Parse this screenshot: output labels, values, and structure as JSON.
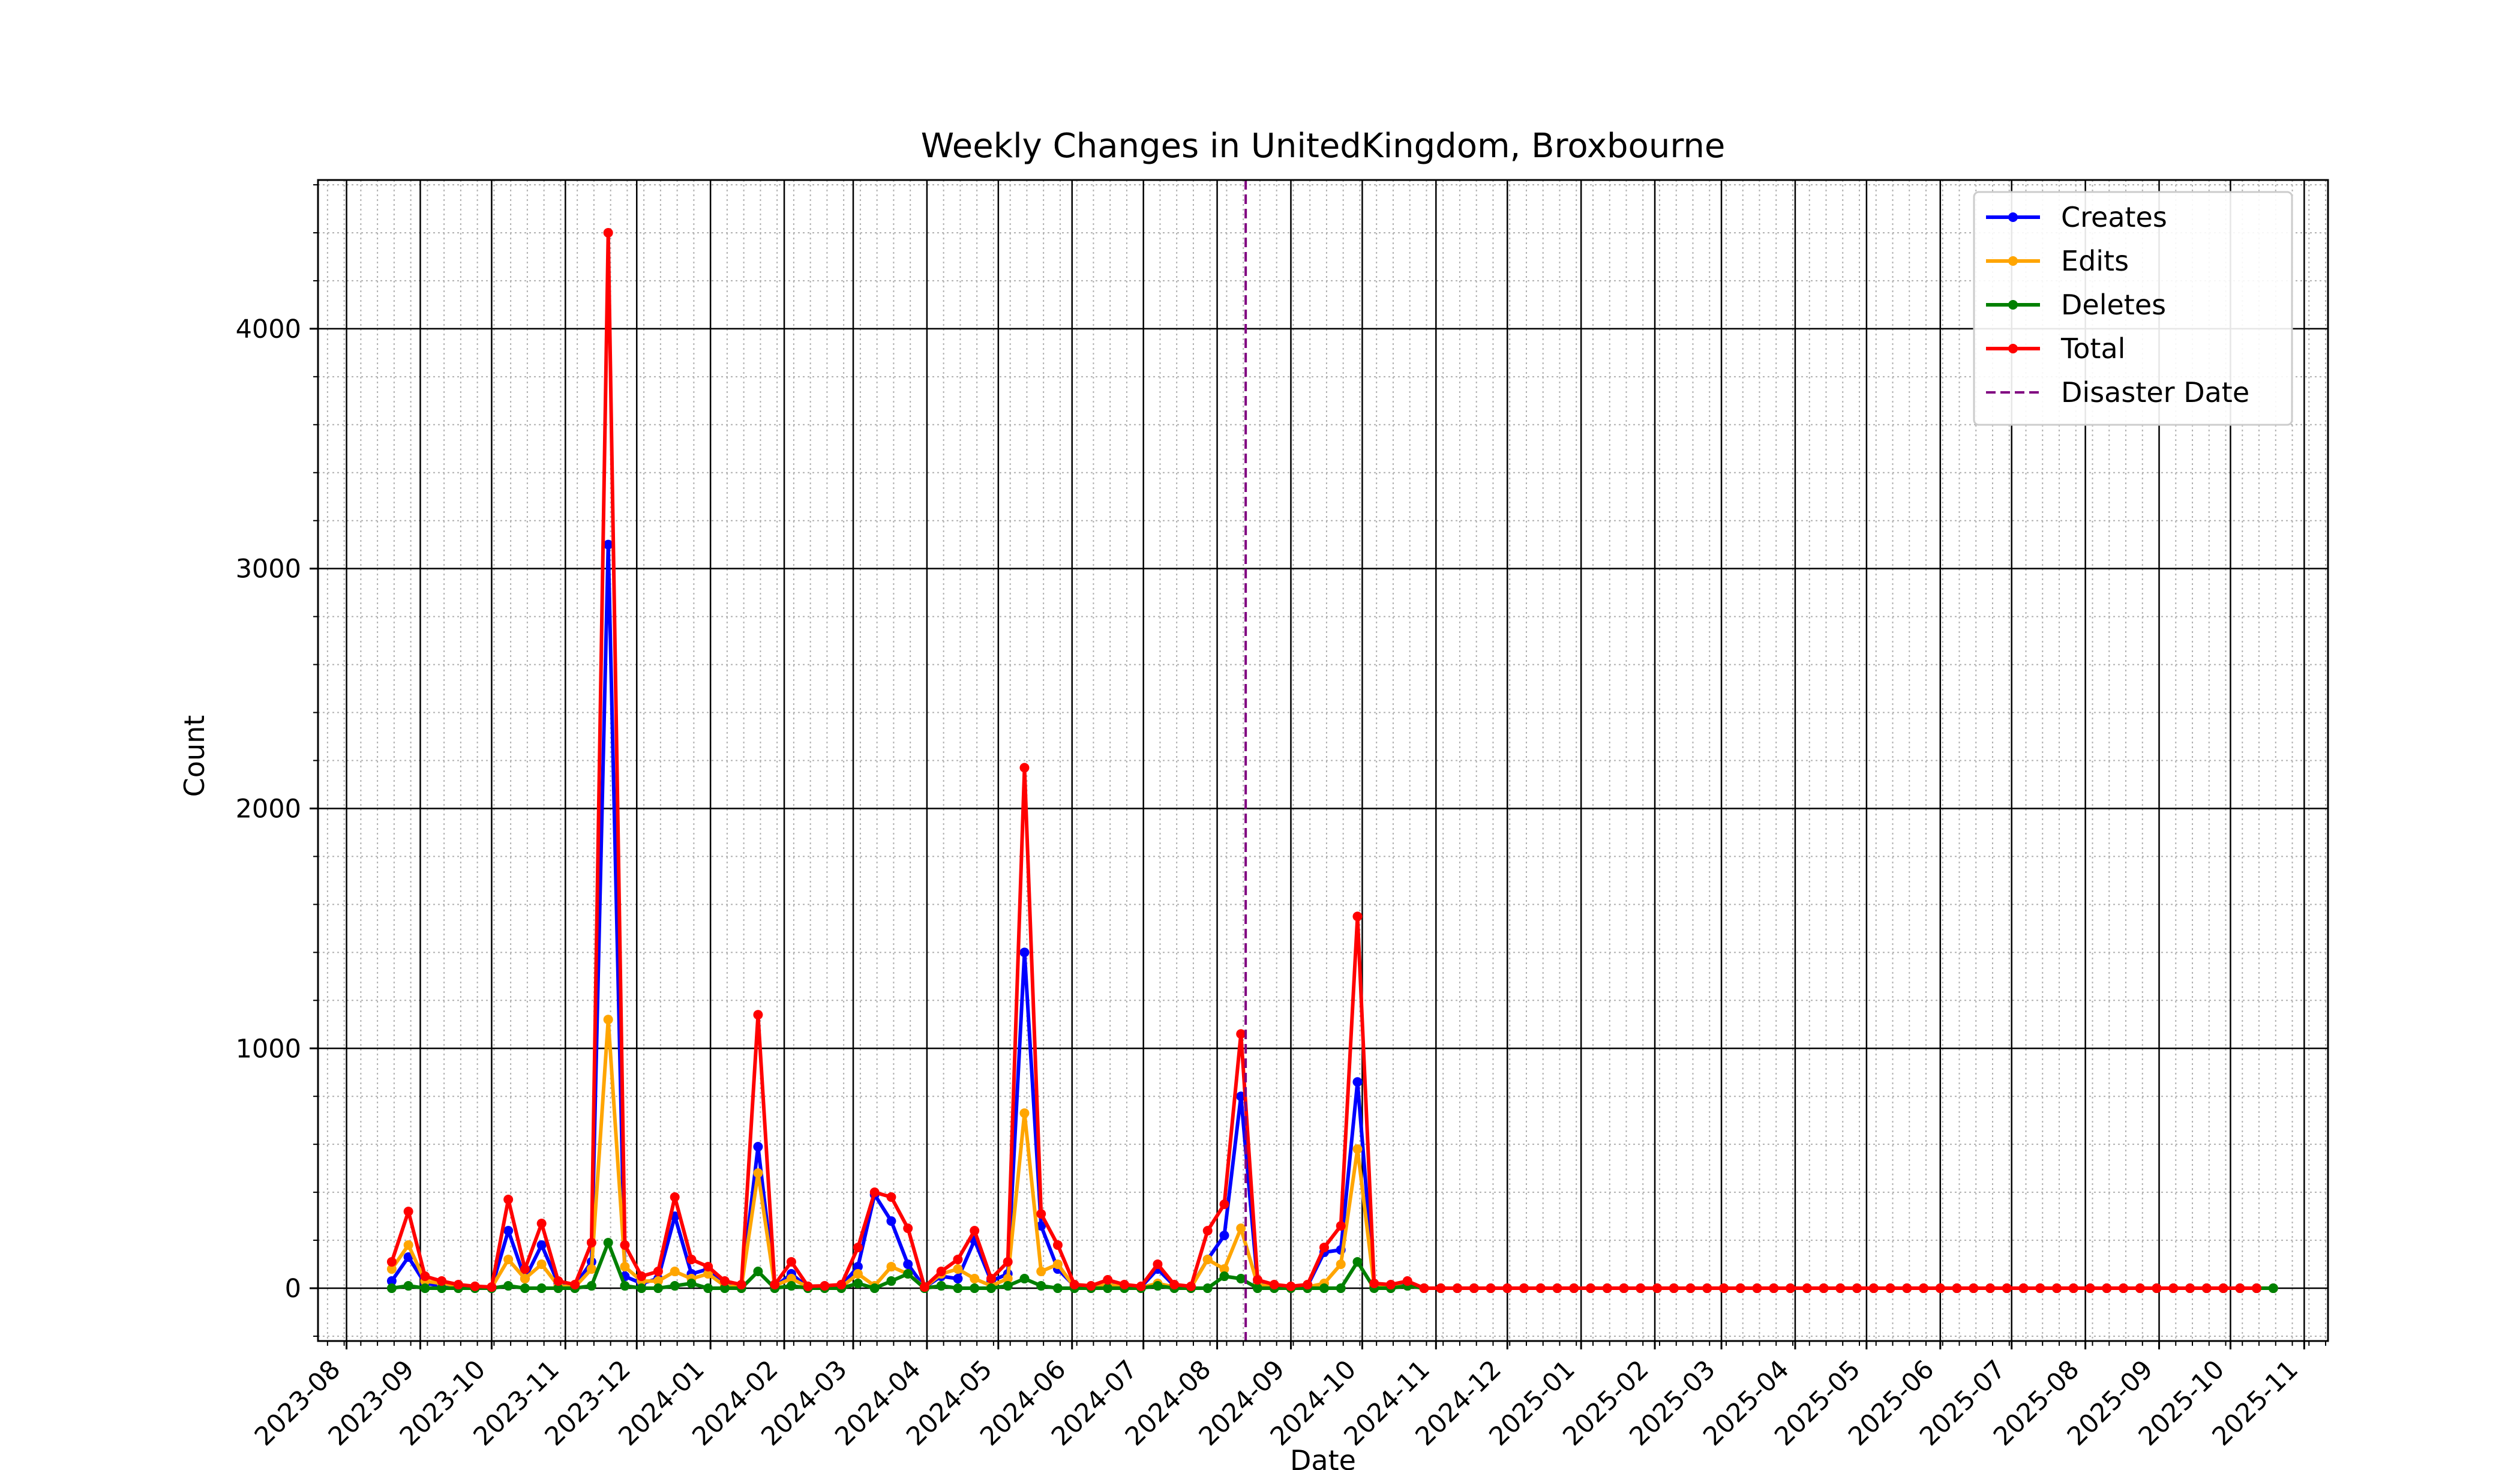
{
  "chart_data": {
    "type": "line",
    "title": "Weekly Changes in UnitedKingdom, Broxbourne",
    "xlabel": "Date",
    "ylabel": "Count",
    "x_start": "2023-08-20",
    "x_step_days": 7,
    "xlim": [
      "2023-07-20",
      "2025-11-11"
    ],
    "ylim": [
      -220,
      4620
    ],
    "y_ticks": [
      0,
      1000,
      2000,
      3000,
      4000
    ],
    "x_ticks": [
      "2023-08",
      "2023-09",
      "2023-10",
      "2023-11",
      "2023-12",
      "2024-01",
      "2024-02",
      "2024-03",
      "2024-04",
      "2024-05",
      "2024-06",
      "2024-07",
      "2024-08",
      "2024-09",
      "2024-10",
      "2024-11",
      "2024-12",
      "2025-01",
      "2025-02",
      "2025-03",
      "2025-04",
      "2025-05",
      "2025-06",
      "2025-07",
      "2025-08",
      "2025-09",
      "2025-10",
      "2025-11"
    ],
    "disaster_date": "2024-08-13",
    "legend_position": "upper right",
    "grid": true,
    "series": [
      {
        "name": "Creates",
        "color": "#0000ff",
        "values": [
          30,
          130,
          20,
          10,
          5,
          3,
          2,
          240,
          40,
          180,
          20,
          10,
          110,
          3100,
          50,
          20,
          40,
          300,
          60,
          80,
          20,
          10,
          590,
          5,
          60,
          3,
          5,
          10,
          90,
          390,
          280,
          100,
          3,
          50,
          40,
          200,
          30,
          60,
          1400,
          260,
          80,
          10,
          5,
          20,
          10,
          5,
          80,
          10,
          5,
          120,
          220,
          800,
          20,
          10,
          5,
          10,
          150,
          160,
          860,
          10,
          10,
          20,
          0,
          0,
          0,
          0,
          0,
          0,
          0,
          0,
          0,
          0,
          0,
          0,
          0,
          0,
          0,
          0,
          0,
          0,
          0,
          0,
          0,
          0,
          0,
          0,
          0,
          0,
          0,
          0,
          0,
          0,
          0,
          0,
          0,
          0,
          0,
          0,
          0,
          0,
          0,
          0,
          0,
          0,
          0,
          0,
          0,
          0,
          0,
          0,
          0,
          0,
          0,
          0
        ]
      },
      {
        "name": "Edits",
        "color": "#ffa500",
        "values": [
          80,
          180,
          30,
          20,
          10,
          5,
          3,
          120,
          40,
          100,
          10,
          5,
          80,
          1120,
          90,
          30,
          30,
          70,
          40,
          60,
          10,
          5,
          480,
          10,
          40,
          5,
          5,
          5,
          60,
          10,
          90,
          60,
          3,
          60,
          80,
          40,
          10,
          40,
          730,
          70,
          100,
          5,
          5,
          15,
          5,
          3,
          20,
          5,
          3,
          120,
          80,
          250,
          15,
          5,
          3,
          5,
          20,
          100,
          580,
          10,
          5,
          10,
          0,
          0,
          0,
          0,
          0,
          0,
          0,
          0,
          0,
          0,
          0,
          0,
          0,
          0,
          0,
          0,
          0,
          0,
          0,
          0,
          0,
          0,
          0,
          0,
          0,
          0,
          0,
          0,
          0,
          0,
          0,
          0,
          0,
          0,
          0,
          0,
          0,
          0,
          0,
          0,
          0,
          0,
          0,
          0,
          0,
          0,
          0,
          0,
          0,
          0,
          0,
          0
        ]
      },
      {
        "name": "Deletes",
        "color": "#008000",
        "values": [
          0,
          10,
          0,
          0,
          0,
          0,
          0,
          10,
          0,
          0,
          0,
          0,
          10,
          190,
          10,
          0,
          0,
          10,
          20,
          0,
          0,
          0,
          70,
          0,
          10,
          0,
          0,
          0,
          20,
          0,
          30,
          60,
          0,
          10,
          0,
          0,
          0,
          10,
          40,
          10,
          0,
          0,
          0,
          0,
          0,
          0,
          10,
          0,
          0,
          0,
          50,
          40,
          0,
          0,
          0,
          0,
          0,
          0,
          110,
          0,
          0,
          10,
          0,
          0,
          0,
          0,
          0,
          0,
          0,
          0,
          0,
          0,
          0,
          0,
          0,
          0,
          0,
          0,
          0,
          0,
          0,
          0,
          0,
          0,
          0,
          0,
          0,
          0,
          0,
          0,
          0,
          0,
          0,
          0,
          0,
          0,
          0,
          0,
          0,
          0,
          0,
          0,
          0,
          0,
          0,
          0,
          0,
          0,
          0,
          0,
          0,
          0,
          0,
          0
        ]
      },
      {
        "name": "Total",
        "color": "#ff0000",
        "values": [
          110,
          320,
          50,
          30,
          15,
          8,
          5,
          370,
          80,
          270,
          30,
          15,
          190,
          4400,
          180,
          50,
          70,
          380,
          120,
          90,
          30,
          15,
          1140,
          15,
          110,
          8,
          10,
          15,
          170,
          400,
          380,
          250,
          5,
          70,
          120,
          240,
          40,
          110,
          2170,
          310,
          180,
          15,
          10,
          35,
          15,
          8,
          100,
          15,
          8,
          240,
          350,
          1060,
          35,
          15,
          8,
          15,
          170,
          260,
          1550,
          20,
          15,
          30,
          0,
          0,
          0,
          0,
          0,
          0,
          0,
          0,
          0,
          0,
          0,
          0,
          0,
          0,
          0,
          0,
          0,
          0,
          0,
          0,
          0,
          0,
          0,
          0,
          0,
          0,
          0,
          0,
          0,
          0,
          0,
          0,
          0,
          0,
          0,
          0,
          0,
          0,
          0,
          0,
          0,
          0,
          0,
          0,
          0,
          0,
          0,
          0,
          0,
          0,
          0
        ]
      }
    ],
    "disaster_label": "Disaster Date",
    "disaster_color": "#800080"
  }
}
